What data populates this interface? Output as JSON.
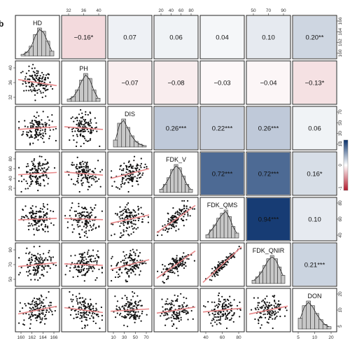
{
  "panel_letter": "b",
  "chart_data": {
    "type": "scatter-matrix",
    "title": "",
    "variables": [
      "HD",
      "PH",
      "DIS",
      "FDK_V",
      "FDK_QMS",
      "FDK_QNIR",
      "DON"
    ],
    "correlations": [
      {
        "row": 0,
        "col": 1,
        "r": -0.16,
        "label": "−0.16*"
      },
      {
        "row": 0,
        "col": 2,
        "r": 0.07,
        "label": "0.07"
      },
      {
        "row": 0,
        "col": 3,
        "r": 0.06,
        "label": "0.06"
      },
      {
        "row": 0,
        "col": 4,
        "r": 0.04,
        "label": "0.04"
      },
      {
        "row": 0,
        "col": 5,
        "r": 0.1,
        "label": "0.10"
      },
      {
        "row": 0,
        "col": 6,
        "r": 0.2,
        "label": "0.20**"
      },
      {
        "row": 1,
        "col": 2,
        "r": -0.07,
        "label": "−0.07"
      },
      {
        "row": 1,
        "col": 3,
        "r": -0.08,
        "label": "−0.08"
      },
      {
        "row": 1,
        "col": 4,
        "r": -0.03,
        "label": "−0.03"
      },
      {
        "row": 1,
        "col": 5,
        "r": -0.04,
        "label": "−0.04"
      },
      {
        "row": 1,
        "col": 6,
        "r": -0.13,
        "label": "−0.13*"
      },
      {
        "row": 2,
        "col": 3,
        "r": 0.26,
        "label": "0.26***"
      },
      {
        "row": 2,
        "col": 4,
        "r": 0.22,
        "label": "0.22***"
      },
      {
        "row": 2,
        "col": 5,
        "r": 0.26,
        "label": "0.26***"
      },
      {
        "row": 2,
        "col": 6,
        "r": 0.06,
        "label": "0.06"
      },
      {
        "row": 3,
        "col": 4,
        "r": 0.72,
        "label": "0.72***"
      },
      {
        "row": 3,
        "col": 5,
        "r": 0.72,
        "label": "0.72***"
      },
      {
        "row": 3,
        "col": 6,
        "r": 0.16,
        "label": "0.16*"
      },
      {
        "row": 4,
        "col": 5,
        "r": 0.94,
        "label": "0.94***"
      },
      {
        "row": 4,
        "col": 6,
        "r": 0.1,
        "label": "0.10"
      },
      {
        "row": 5,
        "col": 6,
        "r": 0.21,
        "label": "0.21***"
      }
    ],
    "histograms": [
      {
        "var": "HD",
        "counts": [
          2,
          5,
          12,
          26,
          34,
          30,
          18,
          6
        ]
      },
      {
        "var": "PH",
        "counts": [
          3,
          6,
          14,
          26,
          34,
          28,
          14,
          4
        ]
      },
      {
        "var": "DIS",
        "counts": [
          10,
          34,
          40,
          28,
          16,
          8,
          4,
          2
        ]
      },
      {
        "var": "FDK_V",
        "counts": [
          4,
          10,
          18,
          28,
          34,
          30,
          20,
          10,
          4
        ]
      },
      {
        "var": "FDK_QMS",
        "counts": [
          4,
          10,
          16,
          24,
          30,
          34,
          26,
          14,
          6
        ]
      },
      {
        "var": "FDK_QNIR",
        "counts": [
          4,
          8,
          14,
          22,
          30,
          34,
          30,
          20,
          10
        ]
      },
      {
        "var": "DON",
        "counts": [
          14,
          30,
          36,
          30,
          20,
          12,
          6,
          3
        ]
      }
    ],
    "axis_ticks": {
      "top": [
        {
          "col": 1,
          "labels": [
            "32",
            "36",
            "40"
          ]
        },
        {
          "col": 3,
          "labels": [
            "20",
            "40",
            "60",
            "80"
          ]
        },
        {
          "col": 5,
          "labels": [
            "50",
            "70",
            "90"
          ]
        }
      ],
      "bottom": [
        {
          "col": 0,
          "labels": [
            "160",
            "162",
            "164",
            "166"
          ]
        },
        {
          "col": 2,
          "labels": [
            "10",
            "30",
            "50",
            "70"
          ]
        },
        {
          "col": 4,
          "labels": [
            "40",
            "60",
            "80"
          ]
        },
        {
          "col": 6,
          "labels": [
            "5",
            "10",
            "20"
          ]
        }
      ],
      "left": [
        {
          "row": 1,
          "labels": [
            "32",
            "36",
            "40"
          ]
        },
        {
          "row": 3,
          "labels": [
            "20",
            "40",
            "60",
            "80"
          ]
        },
        {
          "row": 5,
          "labels": [
            "50",
            "70",
            "90"
          ]
        }
      ],
      "right": [
        {
          "row": 0,
          "labels": [
            "160",
            "162",
            "164",
            "166"
          ]
        },
        {
          "row": 2,
          "labels": [
            "10",
            "30",
            "50",
            "70"
          ]
        },
        {
          "row": 4,
          "labels": [
            "40",
            "60",
            "80"
          ]
        },
        {
          "row": 6,
          "labels": [
            "5",
            "10",
            "20"
          ]
        }
      ]
    },
    "legend": {
      "type": "colorbar",
      "min": -1,
      "max": 1,
      "labels": [
        "1",
        "0",
        "-1"
      ],
      "placement": "right"
    },
    "fit_line_color": "#e8888a",
    "histogram_fill": "#c8c8c8",
    "colors": {
      "negative": "#b2182b",
      "neutral": "#ffffff",
      "positive": "#08306b"
    }
  }
}
